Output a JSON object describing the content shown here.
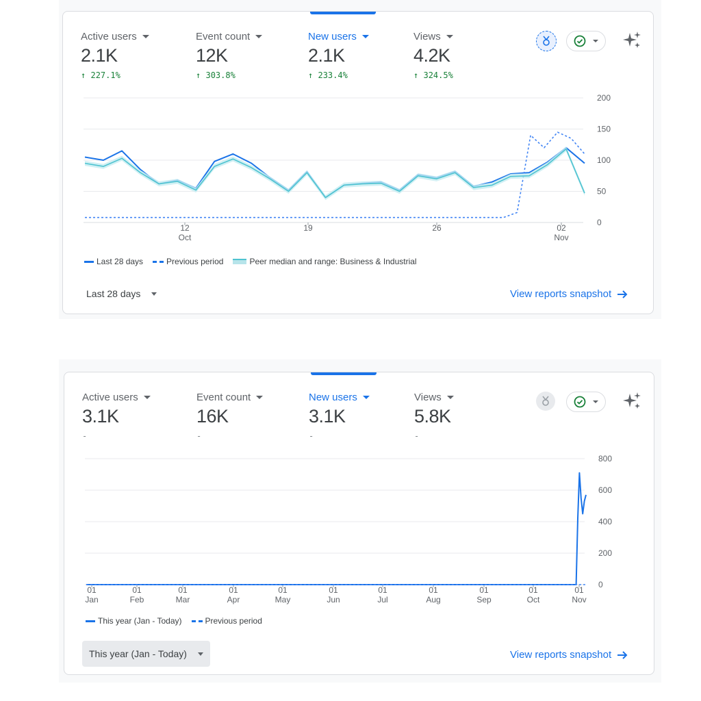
{
  "panels": [
    {
      "metrics": [
        {
          "label": "Active users",
          "value": "2.1K",
          "change": "227.1%"
        },
        {
          "label": "Event count",
          "value": "12K",
          "change": "303.8%"
        },
        {
          "label": "New users",
          "value": "2.1K",
          "change": "233.4%"
        },
        {
          "label": "Views",
          "value": "4.2K",
          "change": "324.5%"
        }
      ],
      "active_metric": 2,
      "icons": {
        "badge": "award-badge-icon",
        "check": "check-circle-icon",
        "sparkle": "sparkle-icon"
      },
      "legend": [
        "Last 28 days",
        "Previous period",
        "Peer median and range: Business & Industrial"
      ],
      "range_label": "Last 28 days",
      "link_label": "View reports snapshot",
      "chart_data": {
        "type": "line",
        "x_tick_labels": [
          {
            "day": "12",
            "month": "Oct"
          },
          {
            "day": "19",
            "month": ""
          },
          {
            "day": "26",
            "month": ""
          },
          {
            "day": "02",
            "month": "Nov"
          }
        ],
        "y_ticks": [
          "0",
          "50",
          "100",
          "150",
          "200"
        ],
        "ylim": [
          0,
          200
        ],
        "series": [
          {
            "values": [
              105,
              100,
              115,
              85,
              62,
              68,
              55,
              98,
              110,
              95,
              72,
              52,
              82,
              40,
              60,
              63,
              65,
              52,
              77,
              72,
              82,
              58,
              65,
              78,
              80,
              97,
              120,
              95
            ]
          },
          {
            "values": [
              8,
              8,
              8,
              8,
              8,
              8,
              8,
              8,
              8,
              8,
              8,
              8,
              8,
              8,
              8,
              8,
              8,
              8,
              8,
              8,
              8,
              8,
              8,
              8,
              8,
              8,
              8,
              8,
              8,
              8,
              8,
              8,
              16,
              140,
              120,
              145,
              135,
              110
            ]
          },
          {
            "values": [
              95,
              90,
              103,
              80,
              62,
              66,
              52,
              90,
              102,
              88,
              70,
              50,
              80,
              40,
              60,
              62,
              63,
              50,
              75,
              70,
              80,
              56,
              60,
              74,
              75,
              93,
              118,
              47
            ]
          }
        ]
      }
    },
    {
      "metrics": [
        {
          "label": "Active users",
          "value": "3.1K",
          "change": "-"
        },
        {
          "label": "Event count",
          "value": "16K",
          "change": "-"
        },
        {
          "label": "New users",
          "value": "3.1K",
          "change": "-"
        },
        {
          "label": "Views",
          "value": "5.8K",
          "change": "-"
        }
      ],
      "active_metric": 2,
      "icons": {
        "badge": "award-badge-icon",
        "check": "check-circle-icon",
        "sparkle": "sparkle-icon"
      },
      "legend": [
        "This year (Jan - Today)",
        "Previous period"
      ],
      "range_label": "This year (Jan - Today)",
      "link_label": "View reports snapshot",
      "chart_data": {
        "type": "line",
        "x_tick_labels": [
          {
            "day": "01",
            "month": "Jan"
          },
          {
            "day": "01",
            "month": "Feb"
          },
          {
            "day": "01",
            "month": "Mar"
          },
          {
            "day": "01",
            "month": "Apr"
          },
          {
            "day": "01",
            "month": "May"
          },
          {
            "day": "01",
            "month": "Jun"
          },
          {
            "day": "01",
            "month": "Jul"
          },
          {
            "day": "01",
            "month": "Aug"
          },
          {
            "day": "01",
            "month": "Sep"
          },
          {
            "day": "01",
            "month": "Oct"
          },
          {
            "day": "01",
            "month": "Nov"
          }
        ],
        "y_ticks": [
          "0",
          "200",
          "400",
          "600",
          "800"
        ],
        "ylim": [
          0,
          800
        ],
        "series": [
          {
            "values": [
              0,
              0,
              0,
              0,
              0,
              0,
              0,
              0,
              0,
              0,
              0,
              0,
              0,
              0,
              0,
              0,
              0,
              0,
              0,
              0,
              0,
              0,
              0,
              0,
              0,
              0,
              0,
              0,
              0,
              0,
              0,
              0,
              0,
              0,
              0,
              0,
              0,
              0,
              0,
              0,
              0,
              0,
              0,
              0,
              0,
              0,
              0,
              0,
              0,
              0,
              0,
              0,
              0,
              0,
              0,
              0,
              0,
              0,
              0,
              0,
              0,
              0,
              0,
              0,
              0,
              0,
              0,
              0,
              0,
              0,
              0,
              0,
              0,
              0,
              0,
              0,
              0,
              0,
              0,
              0,
              0,
              0,
              0,
              0,
              0,
              0,
              0,
              0,
              0,
              0,
              0,
              0,
              0,
              0,
              0,
              0,
              0,
              0,
              0,
              0,
              0,
              0,
              0,
              0,
              0,
              0,
              0,
              0,
              0,
              0,
              0,
              0,
              0,
              0,
              0,
              0,
              0,
              0,
              0,
              0,
              0,
              0,
              0,
              0,
              0,
              0,
              0,
              0,
              0,
              0,
              0,
              0,
              0,
              0,
              0,
              0,
              0,
              0,
              0,
              0,
              0,
              0,
              0,
              0,
              0,
              0,
              0,
              0,
              0,
              0,
              0,
              0,
              0,
              0,
              0,
              0,
              0,
              0,
              0,
              0,
              0,
              0,
              0,
              0,
              0,
              0,
              0,
              0,
              0,
              0,
              0,
              0,
              0,
              0,
              0,
              0,
              0,
              0,
              0,
              0,
              0,
              0,
              0,
              0,
              0,
              0,
              0,
              0,
              0,
              0,
              0,
              0,
              0,
              0,
              0,
              0,
              0,
              0,
              0,
              0,
              0,
              0,
              0,
              0,
              0,
              0,
              0,
              0,
              0,
              0,
              0,
              0,
              0,
              0,
              0,
              0,
              0,
              0,
              0,
              0,
              0,
              0,
              0,
              0,
              0,
              0,
              0,
              0,
              0,
              0,
              0,
              0,
              0,
              0,
              0,
              0,
              0,
              0,
              0,
              0,
              0,
              0,
              0,
              0,
              0,
              0,
              0,
              0,
              0,
              0,
              0,
              0,
              0,
              0,
              0,
              0,
              0,
              0,
              0,
              0,
              0,
              0,
              0,
              0,
              0,
              0,
              0,
              0,
              0,
              0,
              0,
              0,
              0,
              0,
              0,
              0,
              0,
              0,
              0,
              0,
              0,
              0,
              0,
              0,
              0,
              0,
              0,
              0,
              0,
              0,
              0,
              0,
              0,
              0,
              0,
              0,
              0,
              0,
              0,
              420,
              710,
              550,
              450,
              530,
              570
            ]
          },
          {
            "values": [
              0,
              0,
              0,
              0,
              0,
              0,
              0,
              0,
              0,
              0,
              0,
              0,
              0,
              0,
              0,
              0,
              0,
              0,
              0,
              0,
              0,
              0,
              0,
              0,
              0,
              0,
              0,
              0,
              0,
              0,
              0,
              0,
              0,
              0,
              0,
              0,
              0,
              0,
              0,
              0,
              0,
              0,
              0,
              0,
              0,
              0,
              0,
              0,
              0,
              0,
              0,
              0,
              0,
              0,
              0,
              0,
              0,
              0,
              0,
              0,
              0,
              0,
              0,
              0,
              0,
              0,
              0,
              0,
              0,
              0,
              0,
              0,
              0,
              0,
              0,
              0,
              0,
              0,
              0,
              0,
              0,
              0,
              0,
              0,
              0,
              0,
              0,
              0,
              0,
              0,
              0,
              0,
              0,
              0,
              0,
              0,
              0,
              0,
              0,
              0,
              0,
              0,
              0,
              0,
              0,
              0,
              0,
              0,
              0,
              0,
              0,
              0,
              0,
              0,
              0,
              0,
              0,
              0,
              0,
              0,
              0,
              0,
              0,
              0,
              0,
              0,
              0,
              0,
              0,
              0,
              0,
              0,
              0,
              0,
              0,
              0,
              0,
              0,
              0,
              0,
              0,
              0,
              0,
              0,
              0,
              0,
              0,
              0,
              0,
              0,
              0,
              0,
              0,
              0,
              0,
              0,
              0,
              0,
              0,
              0,
              0,
              0,
              0,
              0,
              0,
              0,
              0,
              0,
              0,
              0,
              0,
              0,
              0,
              0,
              0,
              0,
              0,
              0,
              0,
              0,
              0,
              0,
              0,
              0,
              0,
              0,
              0,
              0,
              0,
              0,
              0,
              0,
              0,
              0,
              0,
              0,
              0,
              0,
              0,
              0,
              0,
              0,
              0,
              0,
              0,
              0,
              0,
              0,
              0,
              0,
              0,
              0,
              0,
              0,
              0,
              0,
              0,
              0,
              0,
              0,
              0,
              0,
              0,
              0,
              0,
              0,
              0,
              0,
              0,
              0,
              0,
              0,
              0,
              0,
              0,
              0,
              0,
              0,
              0,
              0,
              0,
              0,
              0,
              0,
              0,
              0,
              0,
              0,
              0,
              0,
              0,
              0,
              0,
              0,
              0,
              0,
              0,
              0,
              0,
              0,
              0,
              0,
              0,
              0,
              0,
              0,
              0,
              0,
              0,
              0,
              0,
              0,
              0,
              0,
              0,
              0,
              0,
              0,
              0,
              0,
              0,
              0,
              0,
              0,
              0,
              0,
              0,
              0,
              0,
              0,
              0,
              0,
              0,
              0,
              0,
              0,
              0,
              0,
              0,
              0,
              0,
              0,
              0,
              0,
              0,
              0,
              0,
              0,
              0,
              0,
              0,
              0,
              0,
              0,
              0,
              0,
              0,
              0,
              0,
              0,
              0,
              0,
              0,
              0,
              0,
              0,
              0,
              0,
              0,
              0
            ]
          }
        ]
      }
    }
  ]
}
